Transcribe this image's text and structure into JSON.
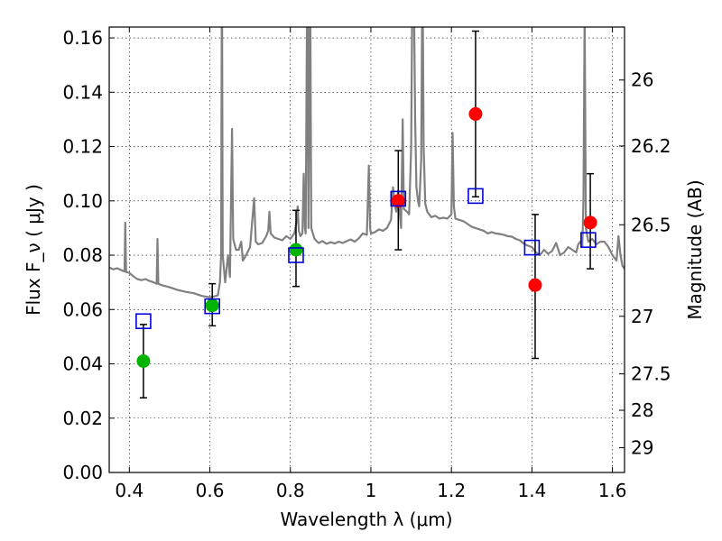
{
  "chart_data": {
    "type": "scatter",
    "xlabel": "Wavelength  λ (μm)",
    "ylabel": "Flux  F_ν  ( μJy )",
    "y2label": "Magnitude (AB)",
    "xlim": [
      0.35,
      1.63
    ],
    "ylim": [
      0.0,
      0.164
    ],
    "grid": true,
    "xticks": [
      0.4,
      0.6,
      0.8,
      1.0,
      1.2,
      1.4,
      1.6
    ],
    "xtick_labels": [
      "0.4",
      "0.6",
      "0.8",
      "1",
      "1.2",
      "1.4",
      "1.6"
    ],
    "yticks": [
      0.0,
      0.02,
      0.04,
      0.06,
      0.08,
      0.1,
      0.12,
      0.14,
      0.16
    ],
    "ytick_labels": [
      "0.00",
      "0.02",
      "0.04",
      "0.06",
      "0.08",
      "0.10",
      "0.12",
      "0.14",
      "0.16"
    ],
    "y2ticks": [
      {
        "label": "26",
        "flux": 0.1445
      },
      {
        "label": "26.2",
        "flux": 0.1202
      },
      {
        "label": "26.5",
        "flux": 0.0912
      },
      {
        "label": "27",
        "flux": 0.0575
      },
      {
        "label": "27.5",
        "flux": 0.0363
      },
      {
        "label": "28",
        "flux": 0.0229
      },
      {
        "label": "29",
        "flux": 0.0091
      }
    ],
    "colors": {
      "spectrum": "#808080",
      "green_points": "#00b400",
      "red_points": "#ff0000",
      "model_boxes": "#0000dd",
      "errorbars": "#000000",
      "grid": "#000000"
    },
    "series": [
      {
        "marker": "circle",
        "color": "green",
        "points": [
          {
            "x": 0.435,
            "y": 0.041,
            "yerr_low": 0.0275,
            "yerr_high": 0.0545
          },
          {
            "x": 0.606,
            "y": 0.0615,
            "yerr_low": 0.054,
            "yerr_high": 0.0695
          },
          {
            "x": 0.814,
            "y": 0.082,
            "yerr_low": 0.0685,
            "yerr_high": 0.0965
          }
        ]
      },
      {
        "marker": "circle",
        "color": "red",
        "points": [
          {
            "x": 1.068,
            "y": 0.1,
            "yerr_low": 0.082,
            "yerr_high": 0.1185
          },
          {
            "x": 1.26,
            "y": 0.132,
            "yerr_low": 0.1015,
            "yerr_high": 0.1625
          },
          {
            "x": 1.408,
            "y": 0.069,
            "yerr_low": 0.042,
            "yerr_high": 0.095
          },
          {
            "x": 1.545,
            "y": 0.092,
            "yerr_low": 0.075,
            "yerr_high": 0.11
          }
        ]
      },
      {
        "marker": "open-square",
        "color": "blue",
        "points": [
          {
            "x": 0.435,
            "y": 0.0557
          },
          {
            "x": 0.606,
            "y": 0.0612
          },
          {
            "x": 0.814,
            "y": 0.08
          },
          {
            "x": 1.068,
            "y": 0.1008
          },
          {
            "x": 1.26,
            "y": 0.1018
          },
          {
            "x": 1.4,
            "y": 0.0828
          },
          {
            "x": 1.54,
            "y": 0.0856
          }
        ]
      }
    ],
    "spectrum": [
      [
        0.35,
        0.0755
      ],
      [
        0.36,
        0.0748
      ],
      [
        0.37,
        0.0752
      ],
      [
        0.38,
        0.0745
      ],
      [
        0.388,
        0.074
      ],
      [
        0.39,
        0.092
      ],
      [
        0.392,
        0.0738
      ],
      [
        0.4,
        0.0735
      ],
      [
        0.41,
        0.0722
      ],
      [
        0.42,
        0.0712
      ],
      [
        0.43,
        0.0708
      ],
      [
        0.44,
        0.0712
      ],
      [
        0.45,
        0.0705
      ],
      [
        0.46,
        0.07
      ],
      [
        0.468,
        0.0695
      ],
      [
        0.47,
        0.086
      ],
      [
        0.472,
        0.0695
      ],
      [
        0.48,
        0.069
      ],
      [
        0.5,
        0.0682
      ],
      [
        0.52,
        0.0672
      ],
      [
        0.54,
        0.0665
      ],
      [
        0.56,
        0.066
      ],
      [
        0.58,
        0.065
      ],
      [
        0.6,
        0.0645
      ],
      [
        0.61,
        0.0648
      ],
      [
        0.62,
        0.0652
      ],
      [
        0.625,
        0.07
      ],
      [
        0.628,
        0.08
      ],
      [
        0.63,
        0.19
      ],
      [
        0.632,
        0.08
      ],
      [
        0.638,
        0.07
      ],
      [
        0.645,
        0.08
      ],
      [
        0.65,
        0.072
      ],
      [
        0.655,
        0.1265
      ],
      [
        0.658,
        0.086
      ],
      [
        0.665,
        0.082
      ],
      [
        0.672,
        0.082
      ],
      [
        0.678,
        0.085
      ],
      [
        0.682,
        0.078
      ],
      [
        0.69,
        0.08
      ],
      [
        0.7,
        0.083
      ],
      [
        0.71,
        0.101
      ],
      [
        0.714,
        0.085
      ],
      [
        0.72,
        0.084
      ],
      [
        0.73,
        0.0845
      ],
      [
        0.74,
        0.087
      ],
      [
        0.745,
        0.089
      ],
      [
        0.748,
        0.096
      ],
      [
        0.751,
        0.088
      ],
      [
        0.76,
        0.0865
      ],
      [
        0.77,
        0.086
      ],
      [
        0.78,
        0.0855
      ],
      [
        0.79,
        0.087
      ],
      [
        0.8,
        0.086
      ],
      [
        0.81,
        0.088
      ],
      [
        0.815,
        0.092
      ],
      [
        0.818,
        0.098
      ],
      [
        0.821,
        0.089
      ],
      [
        0.825,
        0.087
      ],
      [
        0.83,
        0.088
      ],
      [
        0.833,
        0.11
      ],
      [
        0.836,
        0.09
      ],
      [
        0.838,
        0.088
      ],
      [
        0.842,
        0.19
      ],
      [
        0.845,
        0.09
      ],
      [
        0.849,
        0.19
      ],
      [
        0.852,
        0.09
      ],
      [
        0.86,
        0.086
      ],
      [
        0.87,
        0.0845
      ],
      [
        0.88,
        0.0852
      ],
      [
        0.89,
        0.0842
      ],
      [
        0.9,
        0.0848
      ],
      [
        0.91,
        0.0843
      ],
      [
        0.92,
        0.085
      ],
      [
        0.93,
        0.0845
      ],
      [
        0.94,
        0.0852
      ],
      [
        0.95,
        0.0858
      ],
      [
        0.96,
        0.085
      ],
      [
        0.97,
        0.0862
      ],
      [
        0.98,
        0.088
      ],
      [
        0.99,
        0.0875
      ],
      [
        0.995,
        0.113
      ],
      [
        0.998,
        0.09
      ],
      [
        1.0,
        0.088
      ],
      [
        1.01,
        0.0885
      ],
      [
        1.02,
        0.0895
      ],
      [
        1.03,
        0.089
      ],
      [
        1.04,
        0.09
      ],
      [
        1.05,
        0.093
      ],
      [
        1.055,
        0.105
      ],
      [
        1.06,
        0.098
      ],
      [
        1.063,
        0.096
      ],
      [
        1.068,
        0.104
      ],
      [
        1.072,
        0.095
      ],
      [
        1.075,
        0.09
      ],
      [
        1.079,
        0.13
      ],
      [
        1.082,
        0.097
      ],
      [
        1.09,
        0.096
      ],
      [
        1.095,
        0.095
      ],
      [
        1.098,
        0.11
      ],
      [
        1.1,
        0.12
      ],
      [
        1.103,
        0.18
      ],
      [
        1.106,
        0.19
      ],
      [
        1.11,
        0.13
      ],
      [
        1.113,
        0.105
      ],
      [
        1.117,
        0.1
      ],
      [
        1.12,
        0.098
      ],
      [
        1.125,
        0.115
      ],
      [
        1.128,
        0.19
      ],
      [
        1.131,
        0.12
      ],
      [
        1.135,
        0.099
      ],
      [
        1.14,
        0.096
      ],
      [
        1.15,
        0.094
      ],
      [
        1.16,
        0.0945
      ],
      [
        1.17,
        0.0935
      ],
      [
        1.18,
        0.0938
      ],
      [
        1.19,
        0.0935
      ],
      [
        1.2,
        0.095
      ],
      [
        1.203,
        0.125
      ],
      [
        1.206,
        0.098
      ],
      [
        1.21,
        0.0935
      ],
      [
        1.22,
        0.093
      ],
      [
        1.23,
        0.0925
      ],
      [
        1.24,
        0.0915
      ],
      [
        1.25,
        0.0905
      ],
      [
        1.26,
        0.09
      ],
      [
        1.27,
        0.0895
      ],
      [
        1.28,
        0.089
      ],
      [
        1.29,
        0.088
      ],
      [
        1.3,
        0.0885
      ],
      [
        1.31,
        0.088
      ],
      [
        1.32,
        0.0878
      ],
      [
        1.33,
        0.0875
      ],
      [
        1.34,
        0.087
      ],
      [
        1.35,
        0.0868
      ],
      [
        1.36,
        0.086
      ],
      [
        1.37,
        0.0855
      ],
      [
        1.38,
        0.0842
      ],
      [
        1.39,
        0.0835
      ],
      [
        1.4,
        0.083
      ],
      [
        1.41,
        0.081
      ],
      [
        1.42,
        0.08
      ],
      [
        1.43,
        0.082
      ],
      [
        1.44,
        0.0805
      ],
      [
        1.45,
        0.0815
      ],
      [
        1.46,
        0.0845
      ],
      [
        1.47,
        0.08
      ],
      [
        1.48,
        0.081
      ],
      [
        1.49,
        0.083
      ],
      [
        1.5,
        0.082
      ],
      [
        1.51,
        0.081
      ],
      [
        1.515,
        0.084
      ],
      [
        1.52,
        0.085
      ],
      [
        1.525,
        0.083
      ],
      [
        1.528,
        0.1
      ],
      [
        1.531,
        0.17
      ],
      [
        1.534,
        0.09
      ],
      [
        1.54,
        0.085
      ],
      [
        1.55,
        0.086
      ],
      [
        1.56,
        0.084
      ],
      [
        1.57,
        0.085
      ],
      [
        1.58,
        0.085
      ],
      [
        1.59,
        0.083
      ],
      [
        1.6,
        0.08
      ],
      [
        1.61,
        0.078
      ],
      [
        1.615,
        0.087
      ],
      [
        1.62,
        0.08
      ],
      [
        1.625,
        0.076
      ],
      [
        1.63,
        0.075
      ]
    ]
  }
}
